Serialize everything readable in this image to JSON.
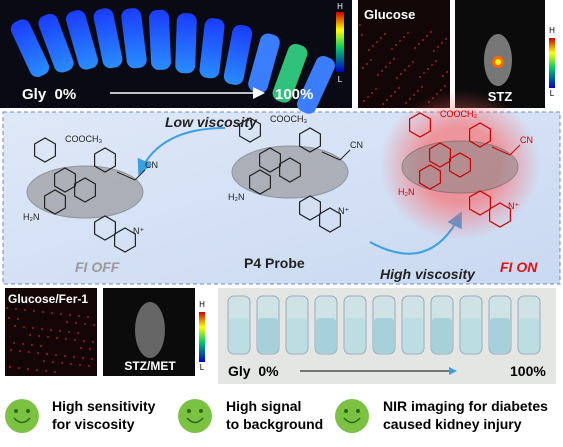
{
  "top_panel": {
    "gradient_start": "Gly  0%",
    "gradient_end": "100%",
    "colorbar": {
      "high": "H",
      "low": "L"
    }
  },
  "glucose_image": {
    "label": "Glucose"
  },
  "stz_image": {
    "label": "STZ",
    "colorbar": {
      "high": "H",
      "low": "L"
    }
  },
  "mechanism": {
    "low_viscosity": "Low viscosity",
    "high_viscosity": "High viscosity",
    "probe_label": "P4 Probe",
    "off_label": "FI OFF",
    "on_label": "FI ON",
    "molecules": [
      {
        "ester": "COOCH₃",
        "nitrile": "CN",
        "amine": "H₂N",
        "cation": "N⁺"
      },
      {
        "ester": "COOCH₃",
        "nitrile": "CN",
        "amine": "H₂N",
        "cation": "N⁺"
      },
      {
        "ester": "COOCH₃",
        "nitrile": "CN",
        "amine": "H₂N",
        "cation": "N⁺"
      }
    ]
  },
  "fer1_image": {
    "label": "Glucose/Fer-1"
  },
  "met_image": {
    "label": "STZ/MET",
    "colorbar": {
      "high": "H",
      "low": "L"
    }
  },
  "vials_panel": {
    "gradient_start": "Gly  0%",
    "gradient_end": "100%"
  },
  "features": [
    {
      "line1": "High sensitivity",
      "line2": "for viscosity"
    },
    {
      "line1": "High signal",
      "line2": "to background"
    },
    {
      "line1": "NIR imaging for diabetes",
      "line2": "caused kidney injury"
    }
  ]
}
